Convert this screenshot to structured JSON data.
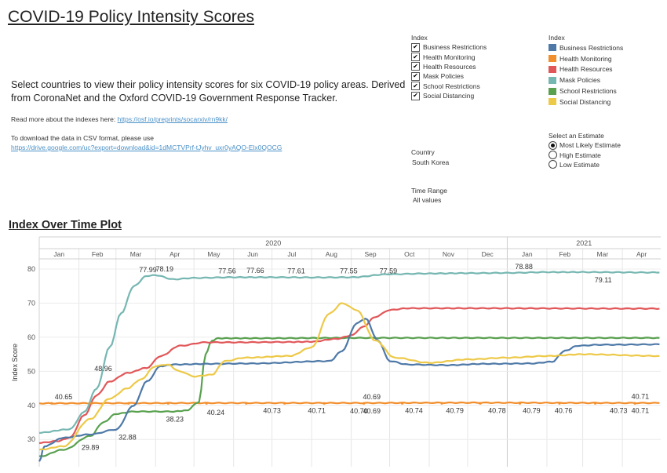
{
  "header": {
    "title": "COVID-19 Policy Intensity Scores",
    "description": "Select countries to view their policy intensity scores for six COVID-19 policy areas. Derived from CoronaNet and the Oxford COVID-19 Government Response Tracker.",
    "read_more_text": "Read more about the indexes here:",
    "read_more_link": "https://osf.io/preprints/socarxiv/rn9kk/",
    "download_text": "To download the data in CSV format, please use",
    "download_link": "https://drive.google.com/uc?export=download&id=1dMCTVPrf-tJyhv_uxr0yAQO-Elx0QOCG"
  },
  "filters": {
    "index_title": "Index",
    "index_items": [
      {
        "label": "Business Restrictions",
        "checked": true
      },
      {
        "label": "Health Monitoring",
        "checked": true
      },
      {
        "label": "Health Resources",
        "checked": true
      },
      {
        "label": "Mask Policies",
        "checked": true
      },
      {
        "label": "School Restrictions",
        "checked": true
      },
      {
        "label": "Social Distancing",
        "checked": true
      }
    ],
    "country_title": "Country",
    "country_value": "South Korea",
    "time_title": "Time Range",
    "time_value": "All values",
    "check_glyph": "✔"
  },
  "legend": {
    "title": "Index",
    "items": [
      {
        "label": "Business Restrictions",
        "color": "#4e79a7"
      },
      {
        "label": "Health Monitoring",
        "color": "#f28e2b"
      },
      {
        "label": "Health Resources",
        "color": "#e15759"
      },
      {
        "label": "Mask Policies",
        "color": "#76b7b2"
      },
      {
        "label": "School Restrictions",
        "color": "#59a14f"
      },
      {
        "label": "Social Distancing",
        "color": "#edc948"
      }
    ]
  },
  "estimate": {
    "title": "Select an Estimate",
    "options": [
      {
        "label": "Most Likely Estimate",
        "selected": true
      },
      {
        "label": "High Estimate",
        "selected": false
      },
      {
        "label": "Low Estimate",
        "selected": false
      }
    ]
  },
  "plot_title": "Index Over Time Plot",
  "chart_data": {
    "type": "line",
    "title": "",
    "xlabel": "",
    "ylabel": "Index Score",
    "years": [
      "2020",
      "2021"
    ],
    "months": [
      "Jan",
      "Feb",
      "Mar",
      "Apr",
      "May",
      "Jun",
      "Jul",
      "Aug",
      "Sep",
      "Oct",
      "Nov",
      "Dec",
      "Jan",
      "Feb",
      "Mar",
      "Apr"
    ],
    "x_range": [
      "2020-01-01",
      "2021-04-30"
    ],
    "ylim": [
      22,
      83
    ],
    "yticks": [
      30,
      40,
      50,
      60,
      70,
      80
    ],
    "grid": true,
    "series": [
      {
        "name": "Health Monitoring",
        "color": "#f28e2b",
        "points": [
          [
            "2020-01-01",
            40.6
          ],
          [
            "2020-03-01",
            40.65
          ],
          [
            "2020-06-01",
            40.7
          ],
          [
            "2020-09-01",
            40.7
          ],
          [
            "2020-12-01",
            40.78
          ],
          [
            "2021-04-30",
            40.7
          ]
        ]
      },
      {
        "name": "School Restrictions",
        "color": "#59a14f",
        "points": [
          [
            "2020-01-01",
            25
          ],
          [
            "2020-01-20",
            27
          ],
          [
            "2020-02-10",
            31
          ],
          [
            "2020-02-20",
            35
          ],
          [
            "2020-03-01",
            37.5
          ],
          [
            "2020-03-15",
            38.2
          ],
          [
            "2020-04-15",
            38.2
          ],
          [
            "2020-04-25",
            38.5
          ],
          [
            "2020-05-05",
            41
          ],
          [
            "2020-05-10",
            55
          ],
          [
            "2020-05-15",
            59
          ],
          [
            "2020-05-20",
            59.7
          ],
          [
            "2020-06-15",
            59.7
          ],
          [
            "2020-09-01",
            59.8
          ],
          [
            "2020-12-01",
            59.8
          ],
          [
            "2021-04-30",
            59.8
          ]
        ]
      },
      {
        "name": "Health Resources",
        "color": "#e15759",
        "points": [
          [
            "2020-01-01",
            29
          ],
          [
            "2020-01-15",
            29.5
          ],
          [
            "2020-01-25",
            30.5
          ],
          [
            "2020-02-05",
            37
          ],
          [
            "2020-02-15",
            43
          ],
          [
            "2020-02-25",
            47
          ],
          [
            "2020-03-10",
            49.5
          ],
          [
            "2020-03-25",
            51
          ],
          [
            "2020-04-05",
            54.5
          ],
          [
            "2020-04-20",
            57.5
          ],
          [
            "2020-05-10",
            58.5
          ],
          [
            "2020-06-01",
            58.5
          ],
          [
            "2020-07-15",
            58.6
          ],
          [
            "2020-08-01",
            58.7
          ],
          [
            "2020-08-20",
            59.5
          ],
          [
            "2020-09-01",
            60.5
          ],
          [
            "2020-09-10",
            63
          ],
          [
            "2020-09-20",
            66
          ],
          [
            "2020-10-01",
            68
          ],
          [
            "2020-10-15",
            68.5
          ],
          [
            "2020-12-01",
            68.5
          ],
          [
            "2021-04-30",
            68.4
          ]
        ]
      },
      {
        "name": "Business Restrictions",
        "color": "#4e79a7",
        "points": [
          [
            "2020-01-01",
            23.5
          ],
          [
            "2020-01-05",
            28
          ],
          [
            "2020-01-20",
            30.5
          ],
          [
            "2020-02-10",
            31.5
          ],
          [
            "2020-03-01",
            32.9
          ],
          [
            "2020-03-15",
            40
          ],
          [
            "2020-03-25",
            47
          ],
          [
            "2020-04-05",
            51.5
          ],
          [
            "2020-04-15",
            52
          ],
          [
            "2020-05-15",
            52.2
          ],
          [
            "2020-06-15",
            52.3
          ],
          [
            "2020-08-15",
            53
          ],
          [
            "2020-08-25",
            56
          ],
          [
            "2020-09-05",
            64
          ],
          [
            "2020-09-12",
            65.5
          ],
          [
            "2020-09-22",
            59
          ],
          [
            "2020-10-01",
            53
          ],
          [
            "2020-10-15",
            52
          ],
          [
            "2020-11-15",
            51.8
          ],
          [
            "2020-12-15",
            52.2
          ],
          [
            "2021-01-20",
            52.3
          ],
          [
            "2021-02-05",
            52.8
          ],
          [
            "2021-02-15",
            56
          ],
          [
            "2021-02-25",
            57.5
          ],
          [
            "2021-03-15",
            57.8
          ],
          [
            "2021-04-30",
            57.9
          ]
        ]
      },
      {
        "name": "Social Distancing",
        "color": "#edc948",
        "points": [
          [
            "2020-01-01",
            27
          ],
          [
            "2020-01-20",
            28
          ],
          [
            "2020-02-10",
            36
          ],
          [
            "2020-02-25",
            42
          ],
          [
            "2020-03-10",
            45
          ],
          [
            "2020-03-20",
            47.5
          ],
          [
            "2020-04-01",
            51.5
          ],
          [
            "2020-04-10",
            52
          ],
          [
            "2020-04-20",
            50
          ],
          [
            "2020-05-01",
            48.5
          ],
          [
            "2020-05-15",
            49
          ],
          [
            "2020-05-25",
            53
          ],
          [
            "2020-06-10",
            54
          ],
          [
            "2020-07-15",
            54.5
          ],
          [
            "2020-08-01",
            57
          ],
          [
            "2020-08-15",
            67
          ],
          [
            "2020-08-25",
            70
          ],
          [
            "2020-09-05",
            68
          ],
          [
            "2020-09-20",
            59
          ],
          [
            "2020-10-05",
            54
          ],
          [
            "2020-11-01",
            52.5
          ],
          [
            "2020-12-01",
            53.5
          ],
          [
            "2021-01-01",
            54
          ],
          [
            "2021-02-01",
            54.5
          ],
          [
            "2021-03-01",
            55
          ],
          [
            "2021-04-30",
            54.5
          ]
        ]
      },
      {
        "name": "Mask Policies",
        "color": "#76b7b2",
        "points": [
          [
            "2020-01-01",
            32
          ],
          [
            "2020-01-25",
            33
          ],
          [
            "2020-02-05",
            38
          ],
          [
            "2020-02-15",
            45
          ],
          [
            "2020-02-25",
            57
          ],
          [
            "2020-03-05",
            67
          ],
          [
            "2020-03-15",
            75
          ],
          [
            "2020-03-25",
            77.99
          ],
          [
            "2020-04-01",
            78.19
          ],
          [
            "2020-04-15",
            77
          ],
          [
            "2020-05-01",
            77.4
          ],
          [
            "2020-06-01",
            77.6
          ],
          [
            "2020-07-01",
            77.6
          ],
          [
            "2020-08-01",
            77.55
          ],
          [
            "2020-09-01",
            77.59
          ],
          [
            "2020-10-01",
            78.5
          ],
          [
            "2020-11-01",
            78.7
          ],
          [
            "2020-12-01",
            78.8
          ],
          [
            "2021-01-01",
            78.88
          ],
          [
            "2021-02-01",
            79.1
          ],
          [
            "2021-03-01",
            79.11
          ],
          [
            "2021-04-30",
            79
          ]
        ]
      }
    ],
    "annotations": [
      {
        "date": "2020-01-20",
        "value": 40.65,
        "label": "40.65",
        "pos": "above"
      },
      {
        "date": "2020-02-20",
        "value": 48.96,
        "label": "48.96",
        "pos": "above"
      },
      {
        "date": "2020-03-26",
        "value": 77.99,
        "label": "77.99",
        "pos": "above"
      },
      {
        "date": "2020-04-08",
        "value": 78.19,
        "label": "78.19",
        "pos": "above"
      },
      {
        "date": "2020-05-27",
        "value": 77.56,
        "label": "77.56",
        "pos": "above"
      },
      {
        "date": "2020-06-18",
        "value": 77.66,
        "label": "77.66",
        "pos": "above"
      },
      {
        "date": "2020-07-20",
        "value": 77.61,
        "label": "77.61",
        "pos": "above"
      },
      {
        "date": "2020-08-30",
        "value": 77.55,
        "label": "77.55",
        "pos": "above"
      },
      {
        "date": "2020-09-30",
        "value": 77.59,
        "label": "77.59",
        "pos": "above"
      },
      {
        "date": "2021-01-14",
        "value": 78.88,
        "label": "78.88",
        "pos": "above"
      },
      {
        "date": "2021-03-17",
        "value": 79.11,
        "label": "79.11",
        "pos": "below"
      },
      {
        "date": "2020-02-10",
        "value": 29.89,
        "label": "29.89",
        "pos": "below"
      },
      {
        "date": "2020-03-10",
        "value": 32.88,
        "label": "32.88",
        "pos": "below"
      },
      {
        "date": "2020-04-16",
        "value": 38.23,
        "label": "38.23",
        "pos": "below"
      },
      {
        "date": "2020-05-18",
        "value": 40.24,
        "label": "40.24",
        "pos": "below"
      },
      {
        "date": "2020-07-01",
        "value": 40.73,
        "label": "40.73",
        "pos": "below"
      },
      {
        "date": "2020-08-05",
        "value": 40.71,
        "label": "40.71",
        "pos": "below"
      },
      {
        "date": "2020-09-07",
        "value": 40.7,
        "label": "40.70",
        "pos": "below"
      },
      {
        "date": "2020-09-17",
        "value": 40.69,
        "label": "40.69",
        "pos": "below"
      },
      {
        "date": "2020-09-17",
        "value": 40.69,
        "label": "40.69",
        "pos": "above"
      },
      {
        "date": "2020-10-20",
        "value": 40.74,
        "label": "40.74",
        "pos": "below"
      },
      {
        "date": "2020-11-21",
        "value": 40.79,
        "label": "40.79",
        "pos": "below"
      },
      {
        "date": "2020-12-24",
        "value": 40.78,
        "label": "40.78",
        "pos": "below"
      },
      {
        "date": "2021-01-20",
        "value": 40.79,
        "label": "40.79",
        "pos": "below"
      },
      {
        "date": "2021-02-14",
        "value": 40.76,
        "label": "40.76",
        "pos": "below"
      },
      {
        "date": "2021-03-29",
        "value": 40.73,
        "label": "40.73",
        "pos": "below"
      },
      {
        "date": "2021-04-15",
        "value": 40.71,
        "label": "40.71",
        "pos": "below"
      },
      {
        "date": "2021-04-15",
        "value": 40.71,
        "label": "40.71",
        "pos": "above"
      }
    ]
  }
}
